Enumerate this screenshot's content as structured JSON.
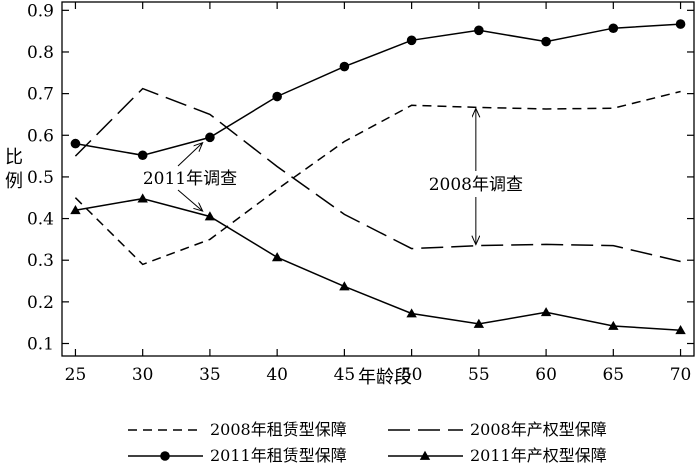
{
  "chart_data": {
    "type": "line",
    "xlabel": "年龄段",
    "ylabel": "比例",
    "x": [
      25,
      30,
      35,
      40,
      45,
      50,
      55,
      60,
      65,
      70
    ],
    "xlim": [
      24,
      71
    ],
    "ylim": [
      0.07,
      0.92
    ],
    "yticks": [
      "0.1",
      "0.2",
      "0.3",
      "0.4",
      "0.5",
      "0.6",
      "0.7",
      "0.8",
      "0.9"
    ],
    "grid": false,
    "legend_position": "bottom",
    "series": [
      {
        "name": "2008年租赁型保障",
        "style": "short-dash",
        "marker": "none",
        "values": [
          0.45,
          0.29,
          0.35,
          0.47,
          0.585,
          0.672,
          0.667,
          0.663,
          0.665,
          0.705
        ]
      },
      {
        "name": "2008年产权型保障",
        "style": "long-dash",
        "marker": "none",
        "values": [
          0.55,
          0.712,
          0.65,
          0.525,
          0.41,
          0.328,
          0.335,
          0.338,
          0.335,
          0.297
        ]
      },
      {
        "name": "2011年租赁型保障",
        "style": "solid",
        "marker": "circle",
        "values": [
          0.58,
          0.552,
          0.595,
          0.693,
          0.765,
          0.828,
          0.852,
          0.825,
          0.857,
          0.867
        ]
      },
      {
        "name": "2011年产权型保障",
        "style": "solid",
        "marker": "triangle",
        "values": [
          0.42,
          0.448,
          0.405,
          0.307,
          0.237,
          0.172,
          0.147,
          0.175,
          0.142,
          0.132
        ]
      }
    ],
    "annotations": [
      {
        "text": "2011年调查",
        "arrow_targets": [
          {
            "x": 35,
            "y": 0.595
          },
          {
            "x": 35,
            "y": 0.405
          }
        ]
      },
      {
        "text": "2008年调查",
        "arrow_targets": [
          {
            "x": 55,
            "y": 0.667
          },
          {
            "x": 55,
            "y": 0.335
          }
        ]
      }
    ]
  }
}
